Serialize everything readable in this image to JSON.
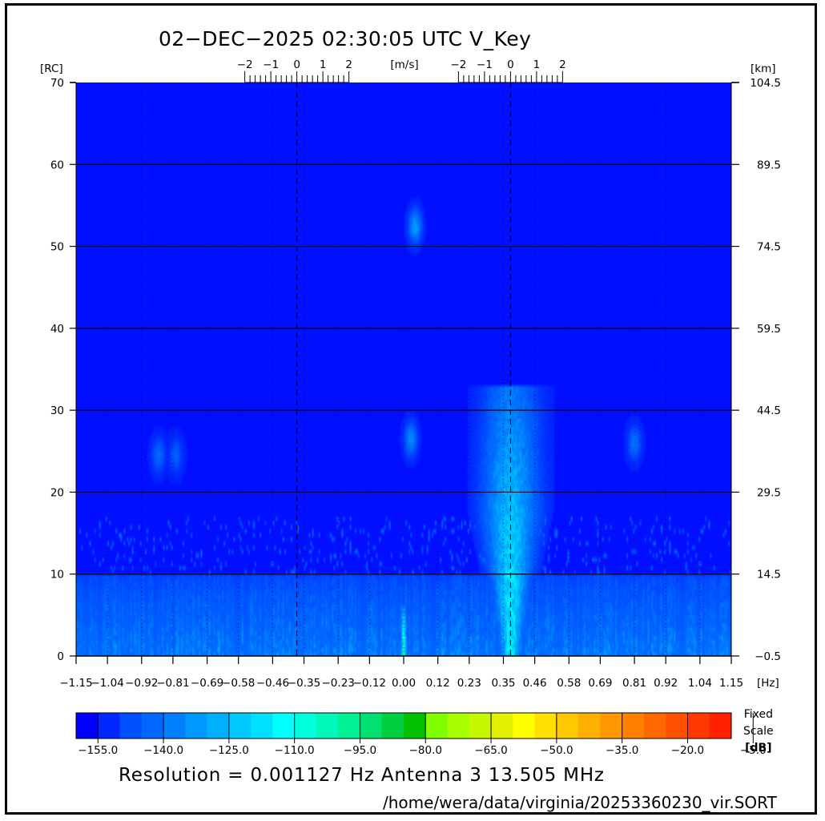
{
  "title": "02−DEC−2025 02:30:05 UTC   V_Key",
  "footer": {
    "resolution": "Resolution = 0.001127 Hz   Antenna  3   13.505 MHz",
    "file_path": "/home/wera/data/virginia/20253360230_vir.SORT"
  },
  "colorbar": {
    "label_lines": [
      "Fixed",
      "Scale",
      "[dB]"
    ],
    "tick_labels": [
      "−155.0",
      "−140.0",
      "−125.0",
      "−110.0",
      "−95.0",
      "−80.0",
      "−65.0",
      "−50.0",
      "−35.0",
      "−20.0",
      "−5.0"
    ],
    "colors": [
      "#0000ff",
      "#0028ff",
      "#0050ff",
      "#0068ff",
      "#0080ff",
      "#0098ff",
      "#00b0ff",
      "#00c8ff",
      "#00e0ff",
      "#00ffff",
      "#00ffdc",
      "#00f8b8",
      "#00f094",
      "#00e070",
      "#00d040",
      "#00c000",
      "#80ff00",
      "#a8ff00",
      "#c8f800",
      "#e0f000",
      "#ffff00",
      "#ffe000",
      "#ffc800",
      "#ffb000",
      "#ff9800",
      "#ff8000",
      "#ff6800",
      "#ff5000",
      "#ff3800",
      "#ff2000"
    ]
  },
  "chart_data": {
    "type": "heatmap",
    "xlabel": "[Hz]",
    "ylabel_left": "[RC]",
    "ylabel_right": "[km]",
    "top_axis_label": "[m/s]",
    "x_tick_labels": [
      "−1.15",
      "−1.04",
      "−0.92",
      "−0.81",
      "−0.69",
      "−0.58",
      "−0.46",
      "−0.35",
      "−0.23",
      "−0.12",
      "0.00",
      "0.12",
      "0.23",
      "0.35",
      "0.46",
      "0.58",
      "0.69",
      "0.81",
      "0.92",
      "1.04",
      "1.15"
    ],
    "xlim": [
      -1.15,
      1.15
    ],
    "y_left_ticks": [
      "0",
      "10",
      "20",
      "30",
      "40",
      "50",
      "60",
      "70"
    ],
    "ylim": [
      0,
      70
    ],
    "y_right_ticks": [
      "−0.5",
      "14.5",
      "29.5",
      "44.5",
      "59.5",
      "74.5",
      "89.5",
      "104.5"
    ],
    "top_axis_groups": [
      {
        "center_hz": -0.375,
        "labels": [
          "−2",
          "−1",
          "0",
          "1",
          "2"
        ]
      },
      {
        "center_hz": 0.375,
        "labels": [
          "−2",
          "−1",
          "0",
          "1",
          "2"
        ]
      }
    ],
    "background_db": -158,
    "features": [
      {
        "note": "noise floor band",
        "x_range": [
          -1.15,
          1.15
        ],
        "rc_range": [
          0,
          10
        ],
        "db_range": [
          -155,
          -128
        ]
      },
      {
        "note": "positive Bragg echo",
        "x_center": 0.375,
        "rc_range": [
          0,
          33
        ],
        "peak_db": -110
      },
      {
        "note": "zero-Doppler line",
        "x_center": 0.0,
        "rc_range": [
          0,
          6
        ],
        "peak_db": -85
      },
      {
        "note": "target",
        "x_center": 0.04,
        "rc_center": 52.5,
        "peak_db": -130
      },
      {
        "note": "target",
        "x_center": 0.025,
        "rc_center": 26.5,
        "peak_db": -135
      },
      {
        "note": "target",
        "x_center": 0.81,
        "rc_center": 26,
        "peak_db": -140
      },
      {
        "note": "target",
        "x_center": -0.86,
        "rc_center": 24.5,
        "peak_db": -142
      },
      {
        "note": "target",
        "x_center": -0.8,
        "rc_center": 24.5,
        "peak_db": -145
      }
    ]
  }
}
